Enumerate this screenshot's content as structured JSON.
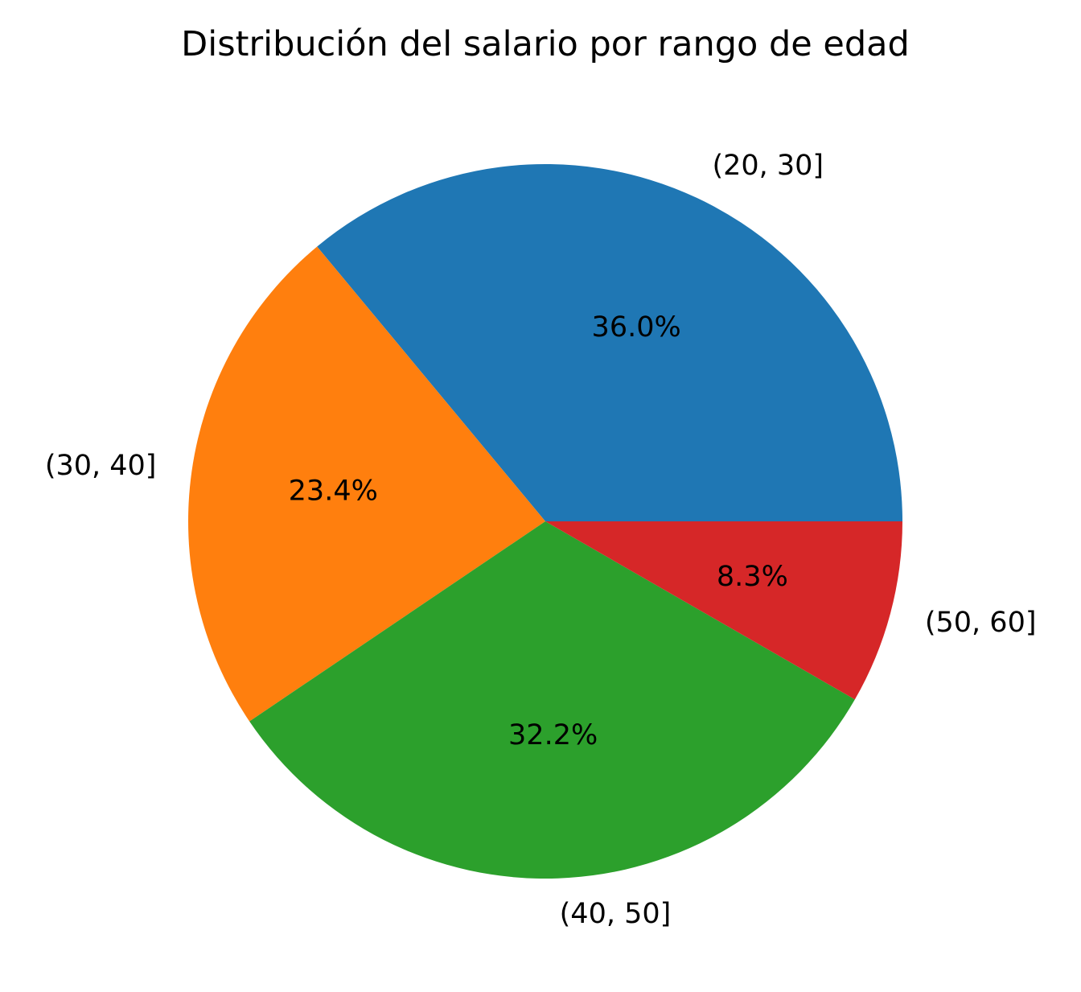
{
  "chart_data": {
    "type": "pie",
    "title": "Distribución del salario por rango de edad",
    "categories": [
      "(20, 30]",
      "(30, 40]",
      "(40, 50]",
      "(50, 60]"
    ],
    "values": [
      36.0,
      23.4,
      32.2,
      8.3
    ],
    "value_labels": [
      "36.0%",
      "23.4%",
      "32.2%",
      "8.3%"
    ],
    "colors": [
      "#1f77b4",
      "#ff7f0e",
      "#2ca02c",
      "#d62728"
    ],
    "start_angle_deg": 0,
    "direction": "counterclockwise",
    "legend": "none"
  }
}
